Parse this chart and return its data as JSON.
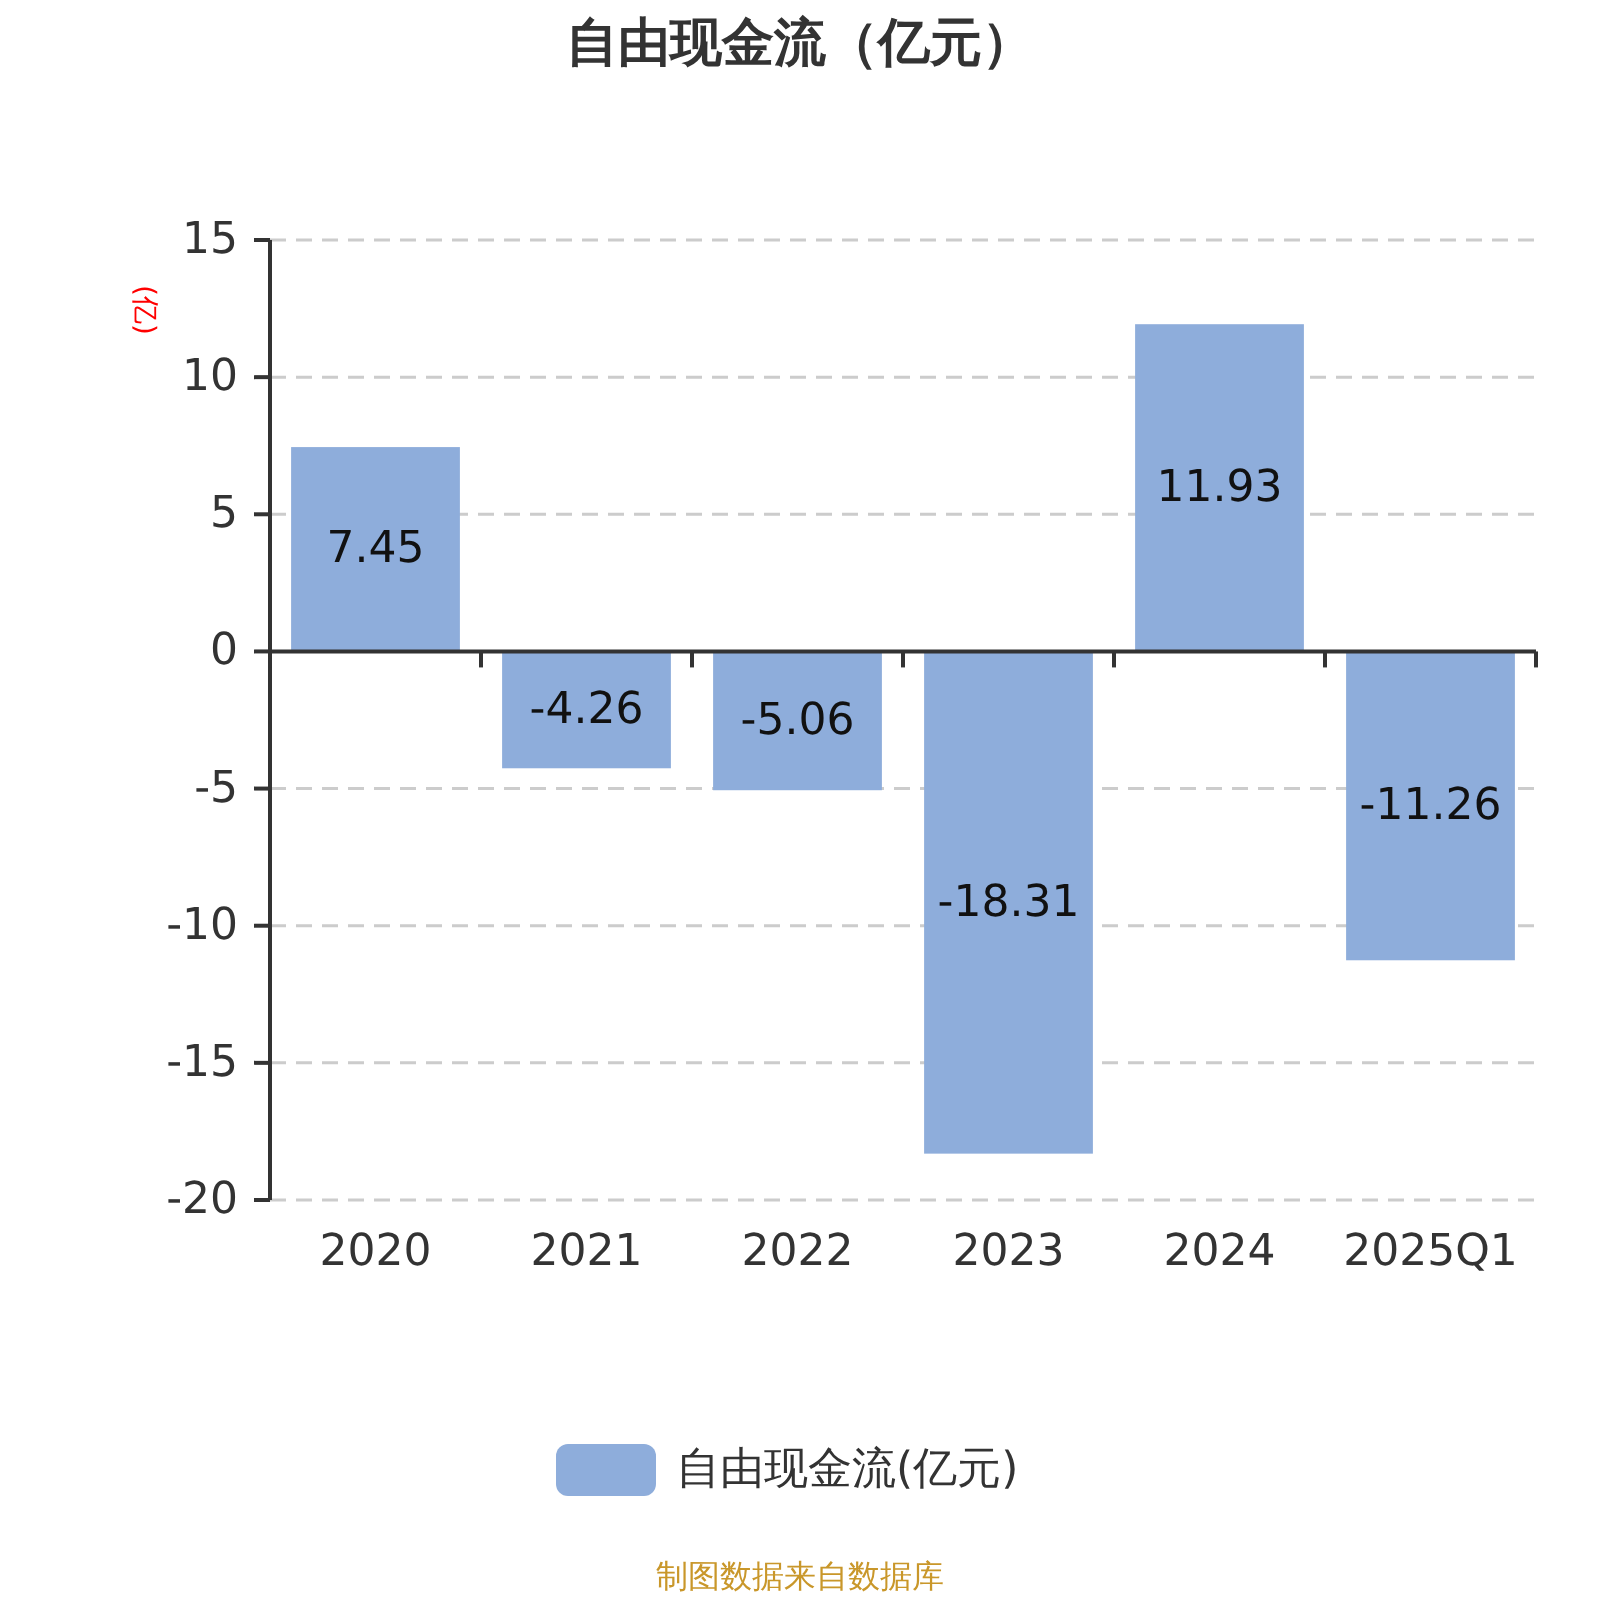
{
  "chart_data": {
    "type": "bar",
    "title": "自由现金流（亿元）",
    "ylabel": "(亿)",
    "categories": [
      "2020",
      "2021",
      "2022",
      "2023",
      "2024",
      "2025Q1"
    ],
    "series": [
      {
        "name": "自由现金流(亿元)",
        "color": "#8eaddb",
        "values": [
          7.45,
          -4.26,
          -5.06,
          -18.31,
          11.93,
          -11.26
        ]
      }
    ],
    "ylim": [
      -20,
      15
    ],
    "yticks": [
      -20,
      -15,
      -10,
      -5,
      0,
      5,
      10,
      15
    ],
    "grid": "y",
    "legend": "bottom",
    "data_labels": true,
    "annotations": [
      "制图数据来自数据库"
    ]
  }
}
